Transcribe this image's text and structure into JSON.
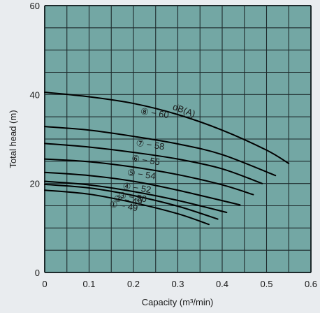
{
  "chart_data": {
    "type": "line",
    "xlabel": "Capacity (m³/min)",
    "ylabel": "Total head (m)",
    "xlim": [
      0,
      0.6
    ],
    "ylim": [
      0,
      60
    ],
    "x_ticks": [
      "0",
      "0.1",
      "0.2",
      "0.3",
      "0.4",
      "0.5",
      "0.6"
    ],
    "y_ticks": [
      "0",
      "20",
      "40",
      "60"
    ],
    "grid": true,
    "unit_label": "dB(A)",
    "colors": {
      "plot_bg": "#73a7a4",
      "grid": "#1e2a2c",
      "curve": "#000000"
    },
    "series": [
      {
        "label": "① − 49",
        "x": [
          0.0,
          0.1,
          0.2,
          0.3,
          0.37
        ],
        "y": [
          18.5,
          17.6,
          15.7,
          13.2,
          10.8
        ]
      },
      {
        "label": "② − 49",
        "x": [
          0.0,
          0.1,
          0.2,
          0.3,
          0.39
        ],
        "y": [
          19.8,
          19.0,
          17.3,
          14.9,
          12.0
        ]
      },
      {
        "label": "③ − 50",
        "x": [
          0.0,
          0.1,
          0.2,
          0.3,
          0.41
        ],
        "y": [
          20.5,
          19.7,
          18.2,
          16.2,
          13.5
        ]
      },
      {
        "label": "④ − 52",
        "x": [
          0.0,
          0.1,
          0.2,
          0.3,
          0.44
        ],
        "y": [
          22.5,
          21.8,
          20.5,
          18.5,
          15.2
        ]
      },
      {
        "label": "⑤ − 54",
        "x": [
          0.0,
          0.1,
          0.2,
          0.3,
          0.4,
          0.47
        ],
        "y": [
          25.5,
          24.9,
          23.7,
          22.0,
          19.7,
          17.5
        ]
      },
      {
        "label": "⑥ − 55",
        "x": [
          0.0,
          0.1,
          0.2,
          0.3,
          0.4,
          0.49
        ],
        "y": [
          29.0,
          28.2,
          27.0,
          25.5,
          23.3,
          20.0
        ]
      },
      {
        "label": "⑦ − 58",
        "x": [
          0.0,
          0.1,
          0.2,
          0.3,
          0.4,
          0.52
        ],
        "y": [
          32.8,
          32.0,
          30.6,
          28.9,
          26.5,
          21.8
        ]
      },
      {
        "label": "⑧ − 60",
        "x": [
          0.0,
          0.1,
          0.2,
          0.3,
          0.4,
          0.5,
          0.55
        ],
        "y": [
          40.5,
          39.5,
          38.0,
          35.5,
          32.0,
          27.5,
          24.5
        ]
      }
    ]
  }
}
